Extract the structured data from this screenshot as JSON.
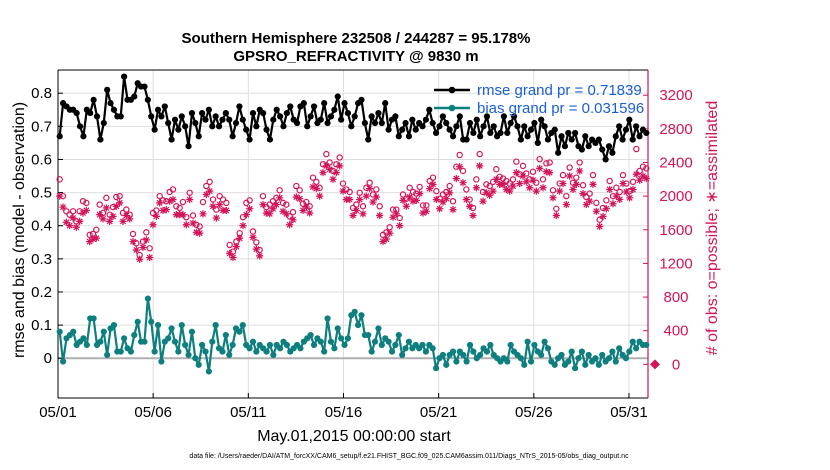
{
  "chart_data": {
    "type": "line",
    "title_line1": "Southern Hemisphere 232508 / 244287 = 95.178%",
    "title_line2": "GPSRO_REFRACTIVITY @ 9830 m",
    "xlabel": "May.01,2015 00:00:00 start",
    "ylabel_left": "rmse and bias (model - observation)",
    "ylabel_right": "# of obs: o=possible; ∗=assimilated",
    "x_tick_labels": [
      "05/01",
      "05/06",
      "05/11",
      "05/16",
      "05/21",
      "05/26",
      "05/31"
    ],
    "x_tick_days": [
      0,
      5,
      10,
      15,
      20,
      25,
      30
    ],
    "xlim": [
      0,
      31
    ],
    "ylim_left": [
      -0.12,
      0.87
    ],
    "y_ticks_left": [
      "0",
      "0.1",
      "0.2",
      "0.3",
      "0.4",
      "0.5",
      "0.6",
      "0.7",
      "0.8"
    ],
    "ylim_right": [
      -400,
      3500
    ],
    "y_ticks_right": [
      "0",
      "400",
      "800",
      "1200",
      "1600",
      "2000",
      "2400",
      "2800",
      "3200"
    ],
    "grid": true,
    "legend_position": "top-right",
    "colors": {
      "rmse": "#000000",
      "bias": "#0e7f7f",
      "obs": "#d4145a",
      "zero_line": "#b0b0b0",
      "grid": "#dedede"
    },
    "series": [
      {
        "name": "rmse grand pr = 0.71839",
        "marker": "dot",
        "values": [
          0.67,
          0.77,
          0.76,
          0.75,
          0.75,
          0.74,
          0.7,
          0.67,
          0.75,
          0.74,
          0.78,
          0.73,
          0.66,
          0.71,
          0.81,
          0.77,
          0.75,
          0.73,
          0.73,
          0.85,
          0.78,
          0.78,
          0.79,
          0.83,
          0.82,
          0.82,
          0.78,
          0.73,
          0.69,
          0.75,
          0.73,
          0.76,
          0.71,
          0.66,
          0.72,
          0.69,
          0.73,
          0.7,
          0.64,
          0.74,
          0.71,
          0.67,
          0.74,
          0.72,
          0.75,
          0.7,
          0.73,
          0.7,
          0.72,
          0.74,
          0.72,
          0.67,
          0.71,
          0.76,
          0.72,
          0.69,
          0.66,
          0.74,
          0.7,
          0.75,
          0.74,
          0.69,
          0.66,
          0.72,
          0.75,
          0.73,
          0.7,
          0.74,
          0.76,
          0.72,
          0.71,
          0.76,
          0.77,
          0.7,
          0.73,
          0.76,
          0.71,
          0.72,
          0.77,
          0.71,
          0.73,
          0.75,
          0.79,
          0.72,
          0.77,
          0.74,
          0.7,
          0.73,
          0.77,
          0.78,
          0.71,
          0.66,
          0.73,
          0.71,
          0.74,
          0.71,
          0.77,
          0.69,
          0.72,
          0.73,
          0.67,
          0.69,
          0.71,
          0.67,
          0.72,
          0.69,
          0.71,
          0.7,
          0.72,
          0.75,
          0.71,
          0.68,
          0.7,
          0.73,
          0.71,
          0.69,
          0.67,
          0.7,
          0.73,
          0.66,
          0.66,
          0.71,
          0.68,
          0.72,
          0.67,
          0.7,
          0.73,
          0.68,
          0.7,
          0.67,
          0.68,
          0.73,
          0.68,
          0.71,
          0.73,
          0.7,
          0.66,
          0.7,
          0.67,
          0.69,
          0.71,
          0.65,
          0.72,
          0.7,
          0.66,
          0.68,
          0.69,
          0.62,
          0.67,
          0.64,
          0.68,
          0.66,
          0.68,
          0.64,
          0.63,
          0.67,
          0.64,
          0.66,
          0.65,
          0.66,
          0.63,
          0.6,
          0.64,
          0.62,
          0.67,
          0.7,
          0.66,
          0.69,
          0.72,
          0.66,
          0.7,
          0.67,
          0.69,
          0.68
        ]
      },
      {
        "name": "bias grand pr = 0.031596",
        "marker": "dot",
        "values": [
          0.08,
          -0.01,
          0.06,
          0.07,
          0.08,
          0.04,
          0.05,
          0.06,
          0.04,
          0.12,
          0.12,
          0.04,
          0.05,
          0.08,
          0.01,
          0.09,
          0.1,
          0.02,
          0.02,
          0.06,
          0.03,
          0.02,
          0.07,
          0.11,
          0.05,
          0.05,
          0.18,
          0.11,
          0.02,
          0.1,
          -0.01,
          0.05,
          0.06,
          0.09,
          0.05,
          0.02,
          0.1,
          0.04,
          0.01,
          0.08,
          0.0,
          -0.02,
          0.04,
          0.02,
          -0.04,
          0.05,
          0.1,
          0.03,
          0.02,
          0.07,
          0.01,
          0.04,
          0.09,
          0.08,
          0.1,
          0.04,
          0.03,
          0.05,
          0.02,
          0.04,
          0.03,
          0.02,
          0.04,
          0.01,
          0.04,
          0.03,
          0.05,
          0.04,
          0.02,
          0.03,
          0.04,
          0.03,
          0.05,
          0.06,
          0.07,
          0.04,
          0.06,
          0.05,
          0.02,
          0.12,
          0.05,
          0.03,
          0.09,
          0.06,
          0.04,
          0.06,
          0.13,
          0.14,
          0.1,
          0.13,
          0.07,
          0.07,
          0.02,
          0.05,
          0.09,
          0.04,
          0.06,
          0.05,
          0.02,
          0.04,
          0.07,
          0.01,
          0.03,
          0.05,
          0.03,
          0.04,
          0.03,
          0.04,
          0.02,
          0.04,
          0.03,
          -0.03,
          0.0,
          0.01,
          -0.02,
          0.01,
          0.02,
          -0.01,
          0.02,
          0.01,
          -0.01,
          0.04,
          0.02,
          0.0,
          0.01,
          0.03,
          0.02,
          0.04,
          0.01,
          0.0,
          -0.01,
          0.0,
          -0.01,
          0.04,
          0.02,
          0.01,
          0.0,
          -0.02,
          0.05,
          -0.01,
          0.04,
          0.02,
          0.01,
          0.05,
          0.03,
          -0.01,
          -0.02,
          0.0,
          0.01,
          -0.02,
          -0.01,
          0.02,
          -0.03,
          0.0,
          0.02,
          -0.02,
          0.01,
          -0.01,
          0.0,
          -0.02,
          0.01,
          -0.01,
          0.0,
          0.02,
          -0.01,
          0.03,
          0.01,
          0.0,
          0.02,
          0.05,
          0.03,
          0.05,
          0.04,
          0.04
        ]
      },
      {
        "name": "obs possible",
        "marker": "o",
        "axis": "right",
        "values": [
          2200,
          2000,
          1820,
          1780,
          1820,
          1700,
          1820,
          1940,
          1920,
          1540,
          1550,
          1600,
          1900,
          1800,
          1980,
          1780,
          1870,
          1990,
          2000,
          1800,
          1840,
          1780,
          1550,
          1440,
          1300,
          1460,
          1570,
          1380,
          1800,
          1830,
          2000,
          1950,
          1940,
          2050,
          2080,
          1880,
          1860,
          1930,
          1750,
          2040,
          1770,
          1660,
          1640,
          1930,
          2120,
          2170,
          1960,
          1840,
          2000,
          1960,
          1920,
          1420,
          1340,
          1460,
          1560,
          1750,
          1920,
          1950,
          1580,
          1450,
          1360,
          2000,
          1870,
          1900,
          1940,
          1980,
          2070,
          1920,
          1900,
          1760,
          1810,
          2120,
          2070,
          1910,
          1930,
          1880,
          2220,
          2170,
          2100,
          2380,
          2500,
          2400,
          2300,
          2380,
          2460,
          2150,
          2080,
          2050,
          1860,
          1900,
          2040,
          1880,
          2100,
          2160,
          2020,
          2080,
          1880,
          1540,
          1570,
          1630,
          1840,
          1840,
          1740,
          2020,
          1970,
          2100,
          2050,
          2030,
          2110,
          1890,
          1890,
          2180,
          2220,
          2060,
          1970,
          2020,
          2050,
          2120,
          1940,
          2350,
          2490,
          2300,
          2080,
          1960,
          1860,
          2200,
          2500,
          2050,
          2140,
          2120,
          2170,
          2320,
          2230,
          2210,
          2180,
          2150,
          2200,
          2410,
          2260,
          2360,
          2270,
          2200,
          2290,
          2160,
          2440,
          2200,
          2390,
          2400,
          2070,
          1850,
          2150,
          2250,
          2000,
          2340,
          2160,
          2220,
          2400,
          2130,
          1990,
          2030,
          2250,
          1920,
          1720,
          1860,
          1950,
          2180,
          2000,
          2100,
          2050,
          2250,
          2150,
          2060,
          2170,
          2560,
          2300,
          2350,
          2330
        ]
      },
      {
        "name": "obs assimilated",
        "marker": "asterisk",
        "axis": "right",
        "values": [
          2000,
          1870,
          1690,
          1650,
          1740,
          1630,
          1700,
          1800,
          1830,
          1460,
          1490,
          1500,
          1780,
          1730,
          1860,
          1700,
          1760,
          1880,
          1920,
          1700,
          1770,
          1730,
          1460,
          1360,
          1250,
          1390,
          1480,
          1270,
          1660,
          1760,
          1920,
          1830,
          1840,
          1940,
          1960,
          1780,
          1780,
          1780,
          1660,
          1960,
          1680,
          1570,
          1560,
          1790,
          2020,
          2060,
          1880,
          1740,
          1900,
          1830,
          1830,
          1320,
          1270,
          1400,
          1500,
          1650,
          1780,
          1850,
          1510,
          1370,
          1290,
          1900,
          1800,
          1790,
          1850,
          1900,
          1980,
          1820,
          1790,
          1660,
          1720,
          1990,
          1970,
          1830,
          1870,
          1800,
          2110,
          2090,
          2000,
          2280,
          2360,
          2320,
          2200,
          2280,
          2360,
          2060,
          1960,
          1960,
          1770,
          1830,
          1960,
          1790,
          2000,
          2090,
          1930,
          1990,
          1770,
          1460,
          1490,
          1560,
          1750,
          1790,
          1650,
          1950,
          1880,
          1990,
          1940,
          1950,
          2030,
          1800,
          1820,
          2090,
          2140,
          1960,
          1850,
          1930,
          1970,
          2040,
          1840,
          2210,
          2350,
          2160,
          1960,
          1880,
          1770,
          2100,
          2360,
          1940,
          2040,
          2010,
          2060,
          2200,
          2140,
          2140,
          2080,
          2060,
          2120,
          2280,
          2150,
          2240,
          2170,
          2100,
          2190,
          2060,
          2330,
          2100,
          2290,
          2280,
          1980,
          1770,
          2060,
          2150,
          1900,
          2240,
          2080,
          2140,
          2300,
          2030,
          1900,
          1940,
          2140,
          1820,
          1640,
          1760,
          1850,
          2080,
          1910,
          2000,
          1960,
          2150,
          2050,
          1980,
          2080,
          2260,
          2190,
          2240,
          2210
        ]
      }
    ],
    "right_marker_value": 0
  },
  "footer": "data file: /Users/raeder/DAI/ATM_forcXX/CAM6_setup/f.e21.FHIST_BGC.f09_025.CAM6assim.011/Diags_NTrS_2015-05/obs_diag_output.nc"
}
